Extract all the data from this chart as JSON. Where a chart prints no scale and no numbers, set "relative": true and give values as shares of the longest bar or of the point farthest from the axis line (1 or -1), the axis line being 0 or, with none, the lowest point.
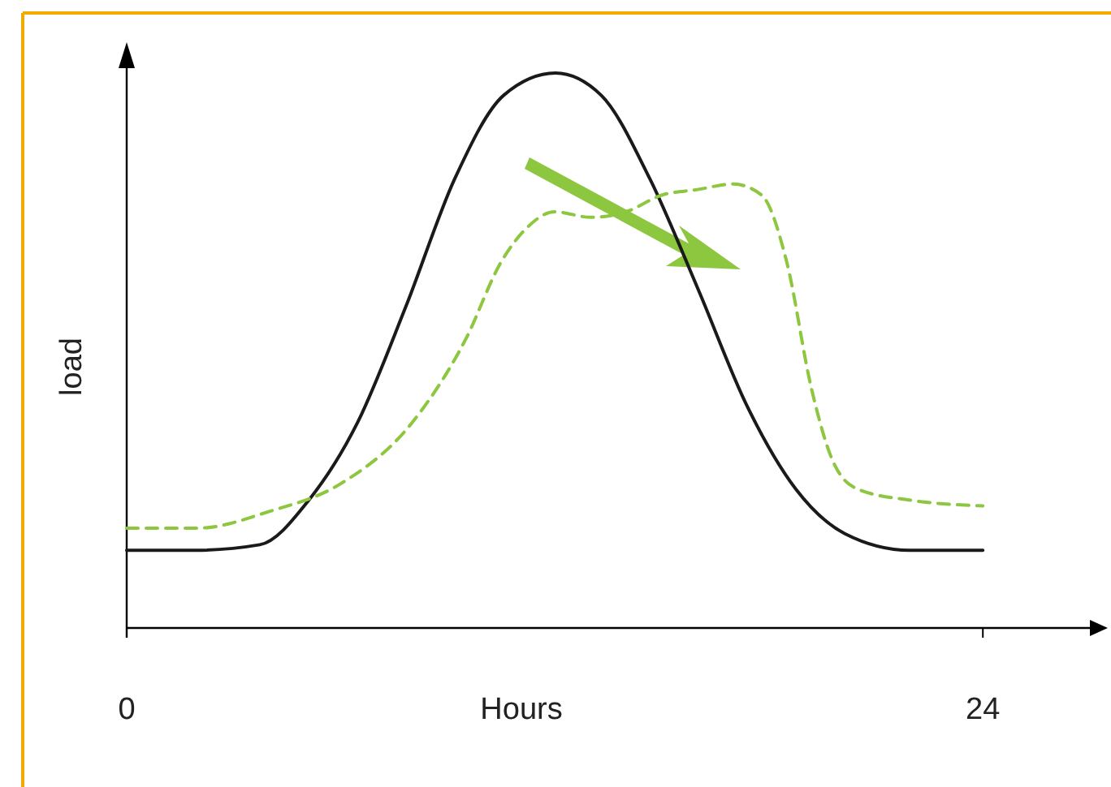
{
  "chart_data": {
    "type": "line",
    "relative": true,
    "xlabel": "Hours",
    "ylabel": "load",
    "xlim": [
      0,
      27
    ],
    "xticks": [
      0,
      24
    ],
    "series": [
      {
        "color": "#1a1a1a",
        "line_style": "solid",
        "x": [
          0,
          1.91,
          3.73,
          5.1,
          6.47,
          7.83,
          9.2,
          10.57,
          12.02,
          13.3,
          14.66,
          16.02,
          17.39,
          18.76,
          20.13,
          21.95,
          24
        ],
        "values": [
          0.14,
          0.14,
          0.15,
          0.23,
          0.37,
          0.58,
          0.81,
          0.96,
          1,
          0.96,
          0.81,
          0.61,
          0.4,
          0.25,
          0.17,
          0.14,
          0.14
        ]
      },
      {
        "color": "#8dc63f",
        "line_style": "dashed",
        "x": [
          0,
          2,
          4,
          6,
          8,
          9.5,
          10.5,
          11.2,
          12,
          13,
          14,
          15,
          16,
          17,
          17.8,
          18.5,
          19.2,
          19.8,
          20.5,
          22,
          24
        ],
        "values": [
          0.18,
          0.18,
          0.21,
          0.26,
          0.37,
          0.52,
          0.66,
          0.72,
          0.75,
          0.74,
          0.75,
          0.78,
          0.79,
          0.8,
          0.78,
          0.66,
          0.43,
          0.3,
          0.25,
          0.23,
          0.22
        ]
      }
    ]
  }
}
